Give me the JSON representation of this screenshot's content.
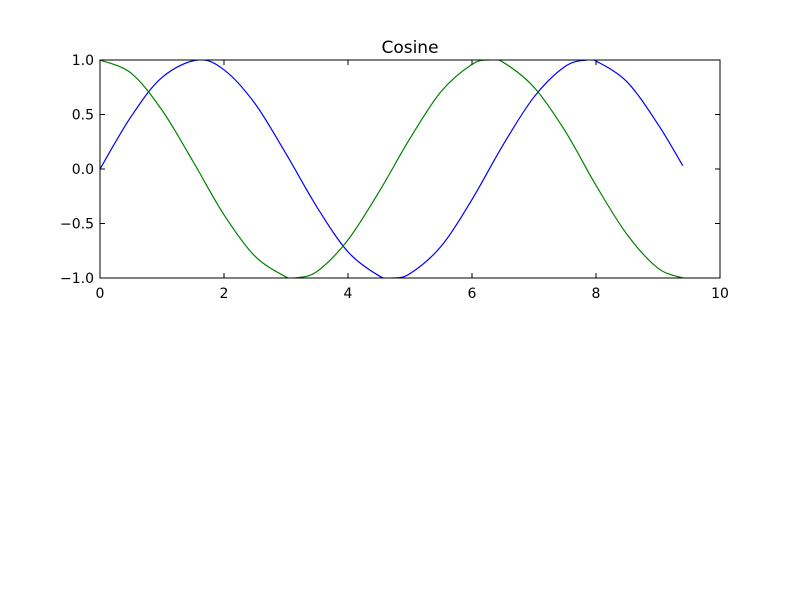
{
  "chart_data": {
    "type": "line",
    "title": "Cosine",
    "xlabel": "",
    "ylabel": "",
    "xlim": [
      0,
      10
    ],
    "ylim": [
      -1.0,
      1.0
    ],
    "grid": false,
    "x_ticks": [
      0,
      2,
      4,
      6,
      8,
      10
    ],
    "x_tick_labels": [
      "0",
      "2",
      "4",
      "6",
      "8",
      "10"
    ],
    "y_ticks": [
      -1.0,
      -0.5,
      0.0,
      0.5,
      1.0
    ],
    "y_tick_labels": [
      "−1.0",
      "−0.5",
      "0.0",
      "0.5",
      "1.0"
    ],
    "series": [
      {
        "color": "#0000ff",
        "x": [
          0.0,
          0.5,
          1.0,
          1.57,
          2.0,
          2.5,
          3.0,
          3.5,
          4.0,
          4.5,
          4.71,
          5.0,
          5.5,
          6.0,
          6.5,
          7.0,
          7.5,
          7.85,
          8.0,
          8.5,
          9.0,
          9.4
        ],
        "y": [
          0.0,
          0.48,
          0.84,
          1.0,
          0.91,
          0.6,
          0.14,
          -0.35,
          -0.76,
          -0.98,
          -1.0,
          -0.96,
          -0.71,
          -0.28,
          0.22,
          0.66,
          0.94,
          1.0,
          0.99,
          0.8,
          0.41,
          0.03
        ]
      },
      {
        "color": "#008000",
        "x": [
          0.0,
          0.5,
          1.0,
          1.5,
          2.0,
          2.5,
          3.0,
          3.14,
          3.5,
          4.0,
          4.5,
          5.0,
          5.5,
          6.0,
          6.28,
          6.5,
          7.0,
          7.5,
          8.0,
          8.5,
          9.0,
          9.4
        ],
        "y": [
          1.0,
          0.88,
          0.54,
          0.07,
          -0.42,
          -0.8,
          -0.99,
          -1.0,
          -0.94,
          -0.65,
          -0.21,
          0.28,
          0.71,
          0.96,
          1.0,
          0.98,
          0.75,
          0.35,
          -0.15,
          -0.6,
          -0.91,
          -1.0
        ]
      }
    ]
  }
}
